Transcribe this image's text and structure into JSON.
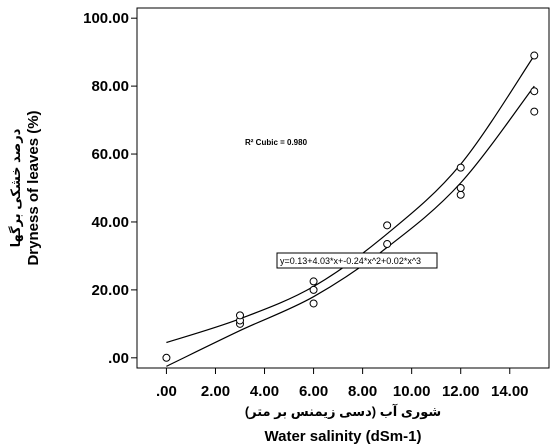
{
  "chart_data": {
    "type": "scatter",
    "title": "",
    "xlabel": "Water salinity (dSm-1)",
    "xlabel_secondary": "شوری آب (دسی زیمنس بر متر)",
    "ylabel": "Dryness of leaves (%)",
    "ylabel_secondary": "درصد خشکی برگها",
    "xlim": [
      -1.2,
      15.6
    ],
    "ylim": [
      -3,
      103
    ],
    "x_tick_labels": [
      ".00",
      "2.00",
      "4.00",
      "6.00",
      "8.00",
      "10.00",
      "12.00",
      "14.00"
    ],
    "y_tick_labels": [
      ".00",
      "20.00",
      "40.00",
      "60.00",
      "80.00",
      "100.00"
    ],
    "points": [
      {
        "x": 0,
        "y": 0
      },
      {
        "x": 3,
        "y": 10
      },
      {
        "x": 3,
        "y": 11
      },
      {
        "x": 3,
        "y": 12.5
      },
      {
        "x": 6,
        "y": 16
      },
      {
        "x": 6,
        "y": 20
      },
      {
        "x": 6,
        "y": 22.5
      },
      {
        "x": 9,
        "y": 33.5
      },
      {
        "x": 9,
        "y": 39
      },
      {
        "x": 12,
        "y": 48
      },
      {
        "x": 12,
        "y": 50
      },
      {
        "x": 12,
        "y": 56
      },
      {
        "x": 15,
        "y": 72.5
      },
      {
        "x": 15,
        "y": 78.5
      },
      {
        "x": 15,
        "y": 89
      }
    ],
    "fit": {
      "kind": "cubic",
      "coefficients": [
        0.13,
        4.03,
        -0.24,
        0.02
      ],
      "band_upper": [
        {
          "x": 0,
          "y": 4.5
        },
        {
          "x": 3,
          "y": 11.5
        },
        {
          "x": 6,
          "y": 21
        },
        {
          "x": 9,
          "y": 36.5
        },
        {
          "x": 12,
          "y": 57
        },
        {
          "x": 15,
          "y": 89
        }
      ],
      "band_lower": [
        {
          "x": 0,
          "y": -2.5
        },
        {
          "x": 3,
          "y": 8
        },
        {
          "x": 6,
          "y": 18
        },
        {
          "x": 9,
          "y": 32.5
        },
        {
          "x": 12,
          "y": 51.5
        },
        {
          "x": 15,
          "y": 80
        }
      ]
    },
    "r2_label": "R² Cubic = 0.980",
    "equation_label": "y=0.13+4.03*x+-0.24*x^2+0.02*x^3",
    "grid": false
  }
}
